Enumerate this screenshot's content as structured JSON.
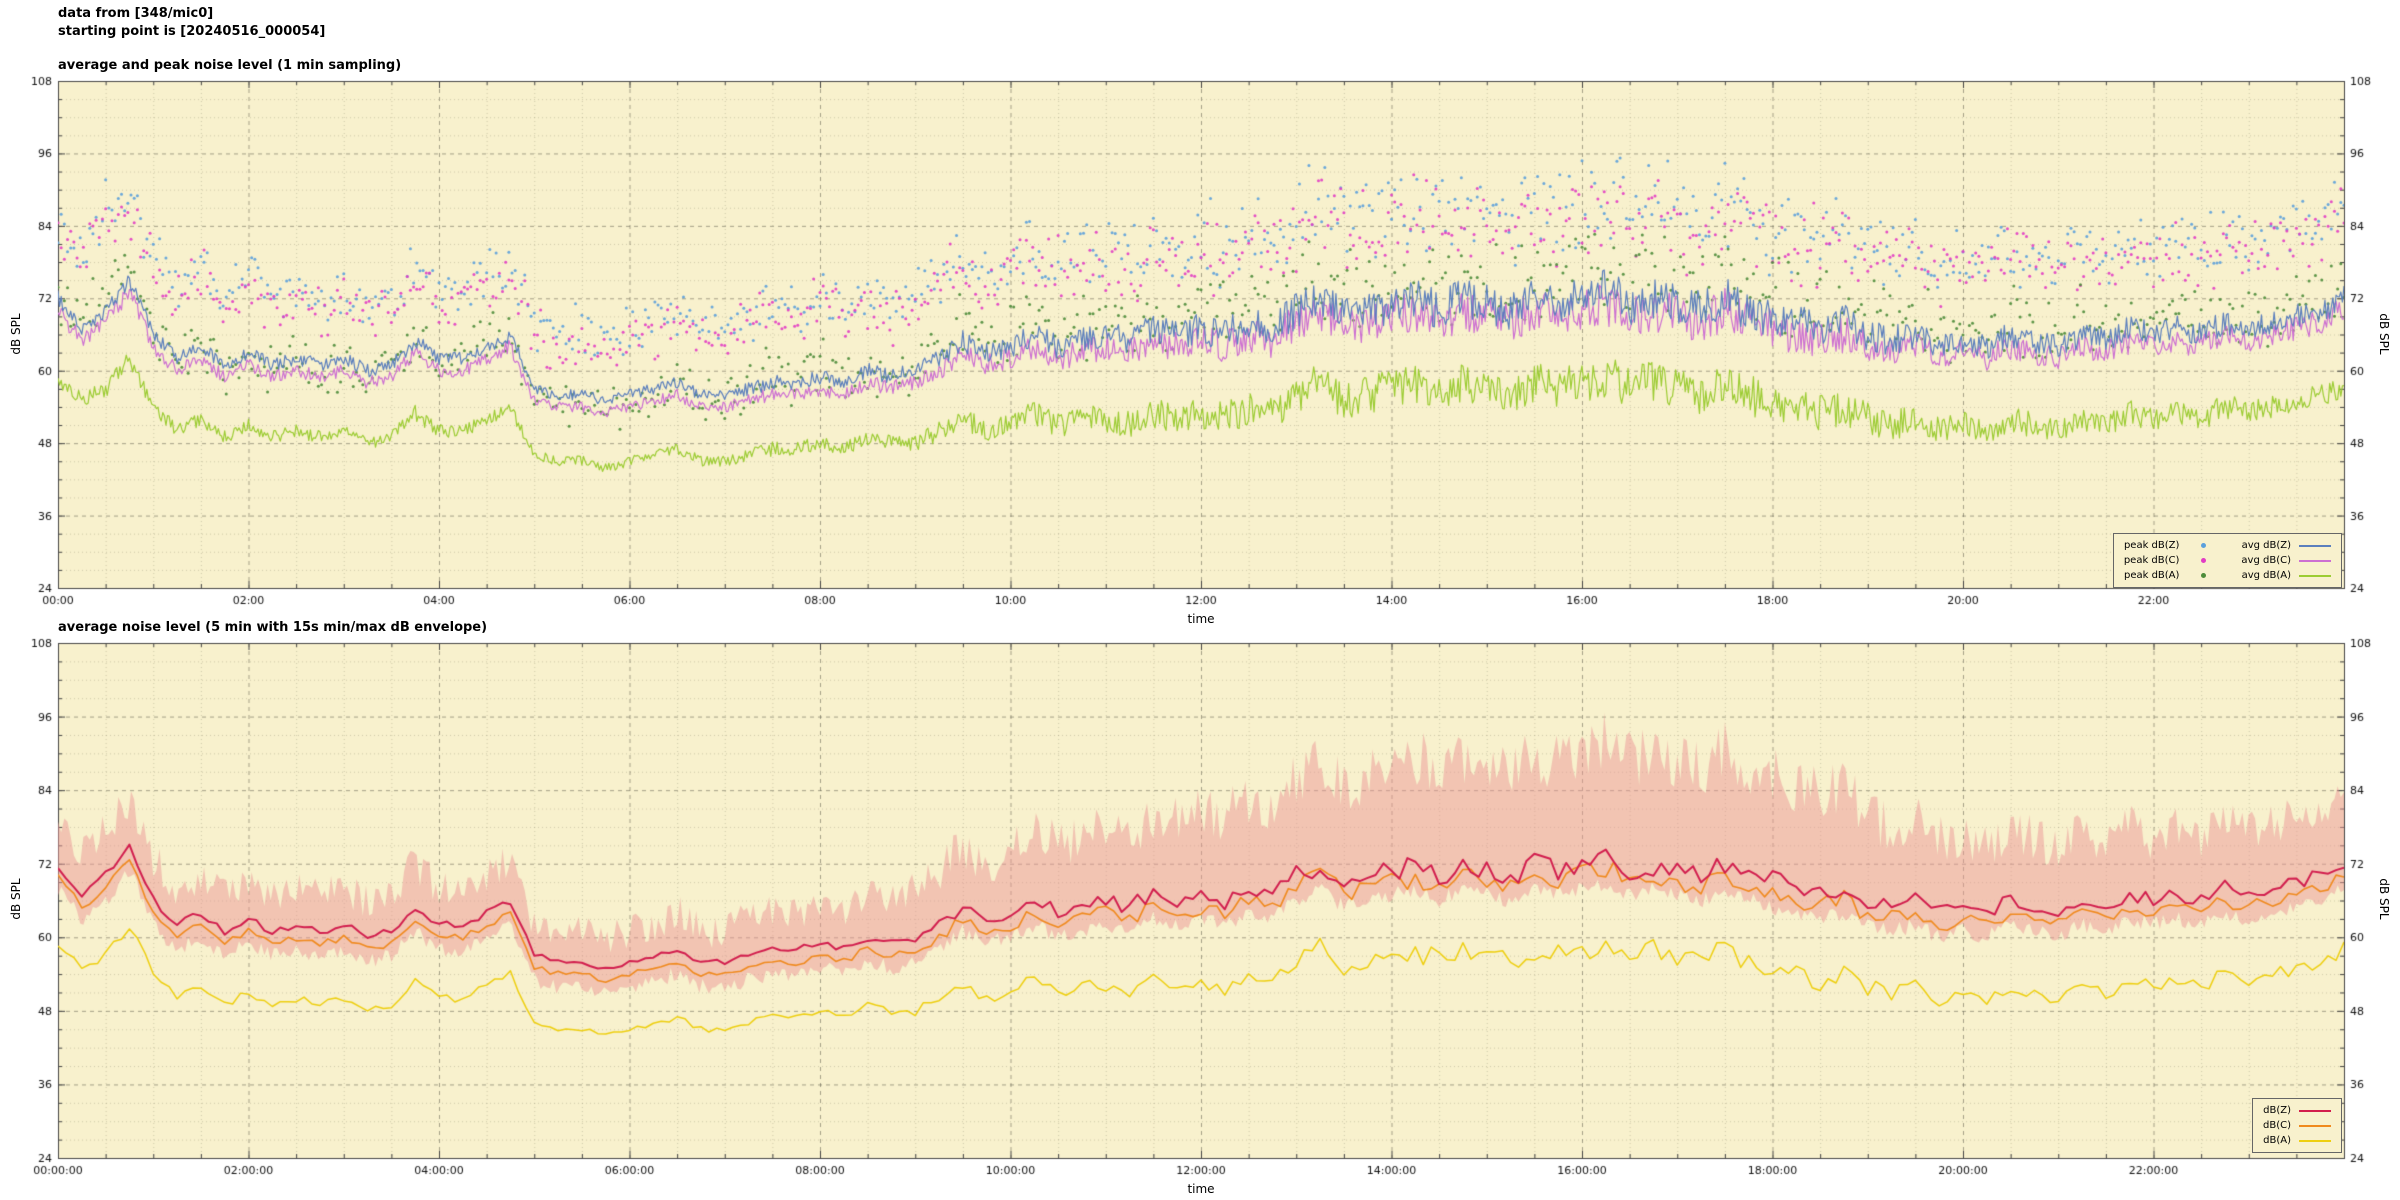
{
  "header": {
    "line1": "data from [348/mic0]",
    "line2": "starting point is [20240516_000054]"
  },
  "colors": {
    "plot_bg": "#f8f1cd",
    "grid_major": "rgba(95,92,78,0.55)",
    "grid_minor": "rgba(130,125,100,0.35)",
    "axis": "#444444",
    "tick_text": "#111111",
    "env_fill": "rgba(236,152,152,0.5)"
  },
  "profiles": {
    "time_step_minutes": 15,
    "avg_Z": [
      72,
      67,
      70,
      75,
      66,
      62,
      64,
      61,
      63,
      61,
      62,
      61,
      62,
      60,
      61,
      65,
      62,
      62,
      64,
      66,
      57,
      56,
      56,
      55,
      56,
      57,
      58,
      56,
      56,
      57,
      58,
      58,
      59,
      58,
      60,
      59,
      60,
      62,
      65,
      63,
      64,
      66,
      64,
      65,
      66,
      65,
      67,
      66,
      67,
      66,
      68,
      67,
      70,
      72,
      69,
      70,
      71,
      72,
      70,
      72,
      71,
      70,
      72,
      71,
      72,
      73,
      71,
      72,
      71,
      70,
      72,
      70,
      69,
      68,
      67,
      68,
      66,
      65,
      66,
      64,
      65,
      64,
      66,
      65,
      64,
      66,
      65,
      67,
      66,
      67,
      66,
      68,
      67,
      68,
      69,
      70,
      72
    ],
    "avg_C": [
      70,
      65,
      68,
      73,
      64,
      60,
      62,
      59,
      61,
      59,
      60,
      59,
      60,
      58,
      59,
      63,
      60,
      60,
      62,
      64,
      55,
      54,
      54,
      53,
      54,
      55,
      56,
      54,
      54,
      55,
      56,
      56,
      57,
      56,
      58,
      57,
      58,
      60,
      63,
      61,
      62,
      64,
      62,
      63,
      64,
      63,
      65,
      64,
      65,
      64,
      66,
      65,
      68,
      70,
      67,
      68,
      69,
      70,
      68,
      70,
      69,
      68,
      70,
      69,
      70,
      71,
      69,
      70,
      69,
      68,
      70,
      68,
      67,
      66,
      65,
      66,
      64,
      63,
      64,
      62,
      63,
      62,
      64,
      63,
      62,
      64,
      63,
      65,
      64,
      65,
      64,
      66,
      65,
      66,
      67,
      68,
      70
    ],
    "avg_A": [
      59,
      55,
      57,
      62,
      54,
      50,
      52,
      49,
      51,
      49,
      50,
      49,
      50,
      48,
      49,
      53,
      50,
      50,
      52,
      54,
      46,
      45,
      45,
      44,
      45,
      46,
      47,
      45,
      45,
      46,
      47,
      47,
      48,
      47,
      49,
      48,
      48,
      50,
      52,
      50,
      51,
      53,
      51,
      52,
      52,
      51,
      53,
      52,
      53,
      52,
      54,
      53,
      56,
      58,
      55,
      56,
      57,
      58,
      56,
      58,
      57,
      56,
      58,
      57,
      58,
      59,
      57,
      58,
      57,
      56,
      58,
      56,
      55,
      54,
      53,
      54,
      52,
      51,
      52,
      50,
      51,
      50,
      52,
      51,
      50,
      52,
      51,
      53,
      52,
      53,
      52,
      54,
      53,
      54,
      55,
      56,
      58
    ],
    "peak_Z": [
      84,
      80,
      86,
      88,
      80,
      74,
      78,
      72,
      76,
      72,
      74,
      72,
      73,
      71,
      72,
      78,
      73,
      74,
      76,
      79,
      68,
      66,
      67,
      65,
      67,
      68,
      70,
      67,
      67,
      69,
      72,
      70,
      74,
      70,
      73,
      71,
      73,
      76,
      80,
      76,
      78,
      81,
      78,
      79,
      80,
      79,
      82,
      80,
      82,
      80,
      83,
      81,
      85,
      88,
      84,
      85,
      86,
      88,
      85,
      87,
      86,
      85,
      88,
      86,
      88,
      90,
      86,
      88,
      86,
      85,
      88,
      85,
      84,
      83,
      82,
      83,
      81,
      80,
      81,
      78,
      80,
      78,
      81,
      79,
      78,
      81,
      79,
      82,
      80,
      82,
      80,
      83,
      81,
      82,
      84,
      85,
      87
    ],
    "peak_C": [
      82,
      78,
      84,
      86,
      78,
      72,
      76,
      70,
      74,
      70,
      72,
      70,
      71,
      69,
      70,
      76,
      71,
      72,
      74,
      77,
      66,
      64,
      65,
      63,
      65,
      66,
      68,
      65,
      65,
      67,
      70,
      68,
      72,
      68,
      71,
      69,
      71,
      74,
      78,
      74,
      76,
      79,
      76,
      77,
      78,
      77,
      80,
      78,
      80,
      78,
      81,
      79,
      83,
      86,
      82,
      83,
      84,
      86,
      83,
      85,
      84,
      83,
      86,
      84,
      86,
      88,
      84,
      86,
      84,
      83,
      86,
      83,
      82,
      81,
      80,
      81,
      79,
      78,
      79,
      76,
      78,
      76,
      79,
      77,
      76,
      79,
      77,
      80,
      78,
      80,
      78,
      81,
      79,
      80,
      82,
      83,
      85
    ],
    "peak_A": [
      72,
      68,
      74,
      76,
      68,
      62,
      66,
      60,
      64,
      60,
      62,
      60,
      61,
      59,
      60,
      66,
      61,
      62,
      64,
      67,
      56,
      54,
      55,
      53,
      55,
      56,
      58,
      55,
      55,
      57,
      60,
      58,
      62,
      58,
      61,
      59,
      61,
      64,
      68,
      64,
      66,
      69,
      66,
      67,
      68,
      67,
      70,
      68,
      70,
      68,
      71,
      69,
      73,
      76,
      72,
      73,
      74,
      76,
      73,
      75,
      74,
      73,
      76,
      74,
      76,
      78,
      74,
      76,
      74,
      73,
      76,
      73,
      72,
      71,
      70,
      71,
      69,
      68,
      69,
      66,
      68,
      66,
      69,
      67,
      66,
      69,
      67,
      70,
      68,
      70,
      68,
      71,
      69,
      70,
      72,
      73,
      75
    ],
    "env_max": [
      80,
      74,
      78,
      82,
      73,
      68,
      70,
      67,
      69,
      67,
      68,
      67,
      68,
      66,
      67,
      72,
      68,
      68,
      70,
      73,
      62,
      61,
      61,
      60,
      61,
      62,
      64,
      61,
      61,
      63,
      65,
      64,
      66,
      64,
      67,
      66,
      68,
      71,
      75,
      72,
      74,
      77,
      75,
      76,
      78,
      77,
      80,
      79,
      81,
      80,
      83,
      82,
      86,
      89,
      85,
      86,
      88,
      90,
      87,
      89,
      88,
      87,
      90,
      88,
      90,
      93,
      89,
      91,
      89,
      87,
      91,
      88,
      86,
      85,
      83,
      84,
      80,
      78,
      79,
      76,
      77,
      75,
      78,
      76,
      74,
      77,
      75,
      79,
      76,
      78,
      76,
      80,
      77,
      78,
      80,
      81,
      84
    ],
    "env_min": [
      68,
      63,
      66,
      71,
      62,
      58,
      60,
      57,
      59,
      57,
      58,
      57,
      58,
      56,
      57,
      61,
      58,
      58,
      60,
      62,
      53,
      52,
      52,
      51,
      52,
      53,
      54,
      52,
      52,
      53,
      54,
      54,
      55,
      54,
      56,
      55,
      56,
      58,
      61,
      59,
      60,
      62,
      60,
      61,
      62,
      61,
      63,
      62,
      63,
      62,
      64,
      63,
      66,
      68,
      65,
      66,
      67,
      68,
      66,
      68,
      67,
      66,
      68,
      67,
      68,
      69,
      67,
      68,
      67,
      66,
      68,
      66,
      65,
      64,
      63,
      64,
      62,
      61,
      62,
      60,
      61,
      60,
      62,
      61,
      60,
      62,
      61,
      63,
      62,
      63,
      62,
      64,
      63,
      64,
      65,
      66,
      68
    ]
  },
  "chart_data": [
    {
      "type": "scatter",
      "title": "average and peak noise level (1 min sampling)",
      "xlabel": "time",
      "ylabel": "dB SPL",
      "ylim": [
        24,
        108
      ],
      "yticks": [
        24,
        36,
        48,
        60,
        72,
        84,
        96,
        108
      ],
      "y_minor_db": 3,
      "x_range_hours": [
        0,
        24
      ],
      "xtick_hours": [
        0,
        2,
        4,
        6,
        8,
        10,
        12,
        14,
        16,
        18,
        20,
        22
      ],
      "xtick_labels": [
        "00:00",
        "02:00",
        "04:00",
        "06:00",
        "08:00",
        "10:00",
        "12:00",
        "14:00",
        "16:00",
        "18:00",
        "20:00",
        "22:00"
      ],
      "x_minor_minutes": 30,
      "grid": true,
      "legend_position": "bottom-right",
      "series": [
        {
          "label": "peak dB(Z)",
          "render": "dots",
          "color": "#5ba0dc",
          "profile": "peak_Z",
          "step_min": 2
        },
        {
          "label": "peak dB(C)",
          "render": "dots",
          "color": "#e23cc4",
          "profile": "peak_C",
          "step_min": 2
        },
        {
          "label": "peak dB(A)",
          "render": "dots",
          "color": "#4d8c3a",
          "profile": "peak_A",
          "step_min": 2
        },
        {
          "label": "avg dB(Z)",
          "render": "line",
          "color": "#5b7fbd",
          "profile": "avg_Z",
          "width": 1.2,
          "step_min": 1
        },
        {
          "label": "avg dB(C)",
          "render": "line",
          "color": "#cd6fd2",
          "profile": "avg_C",
          "width": 1.2,
          "step_min": 1
        },
        {
          "label": "avg dB(A)",
          "render": "line",
          "color": "#9ccc33",
          "profile": "avg_A",
          "width": 1.2,
          "step_min": 1
        }
      ]
    },
    {
      "type": "line",
      "title": "average noise level (5 min with 15s min/max dB envelope)",
      "xlabel": "time",
      "ylabel": "dB SPL",
      "ylim": [
        24,
        108
      ],
      "yticks": [
        24,
        36,
        48,
        60,
        72,
        84,
        96,
        108
      ],
      "y_minor_db": 3,
      "x_range_hours": [
        0,
        24
      ],
      "xtick_hours": [
        0,
        2,
        4,
        6,
        8,
        10,
        12,
        14,
        16,
        18,
        20,
        22
      ],
      "xtick_labels": [
        "00:00:00",
        "02:00:00",
        "04:00:00",
        "06:00:00",
        "08:00:00",
        "10:00:00",
        "12:00:00",
        "14:00:00",
        "16:00:00",
        "18:00:00",
        "20:00:00",
        "22:00:00"
      ],
      "x_minor_minutes": 30,
      "grid": true,
      "legend_position": "bottom-right",
      "series": [
        {
          "label": "dB(Z)",
          "render": "line",
          "color": "#d21e4e",
          "profile": "avg_Z",
          "width": 2.0,
          "step_min": 5,
          "envelope": {
            "max": "env_max",
            "min": "env_min"
          }
        },
        {
          "label": "dB(C)",
          "render": "line",
          "color": "#f08a1e",
          "profile": "avg_C",
          "width": 1.6,
          "step_min": 5
        },
        {
          "label": "dB(A)",
          "render": "line",
          "color": "#eecf10",
          "profile": "avg_A",
          "width": 1.5,
          "step_min": 5
        }
      ]
    }
  ]
}
